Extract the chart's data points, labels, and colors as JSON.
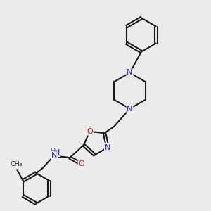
{
  "bg_color": "#ebebeb",
  "bond_color": "#1a1a1a",
  "N_color": "#2222cc",
  "O_color": "#cc1111",
  "lw": 1.5,
  "fs": 8.0,
  "xlim": [
    0,
    10
  ],
  "ylim": [
    0,
    10
  ]
}
